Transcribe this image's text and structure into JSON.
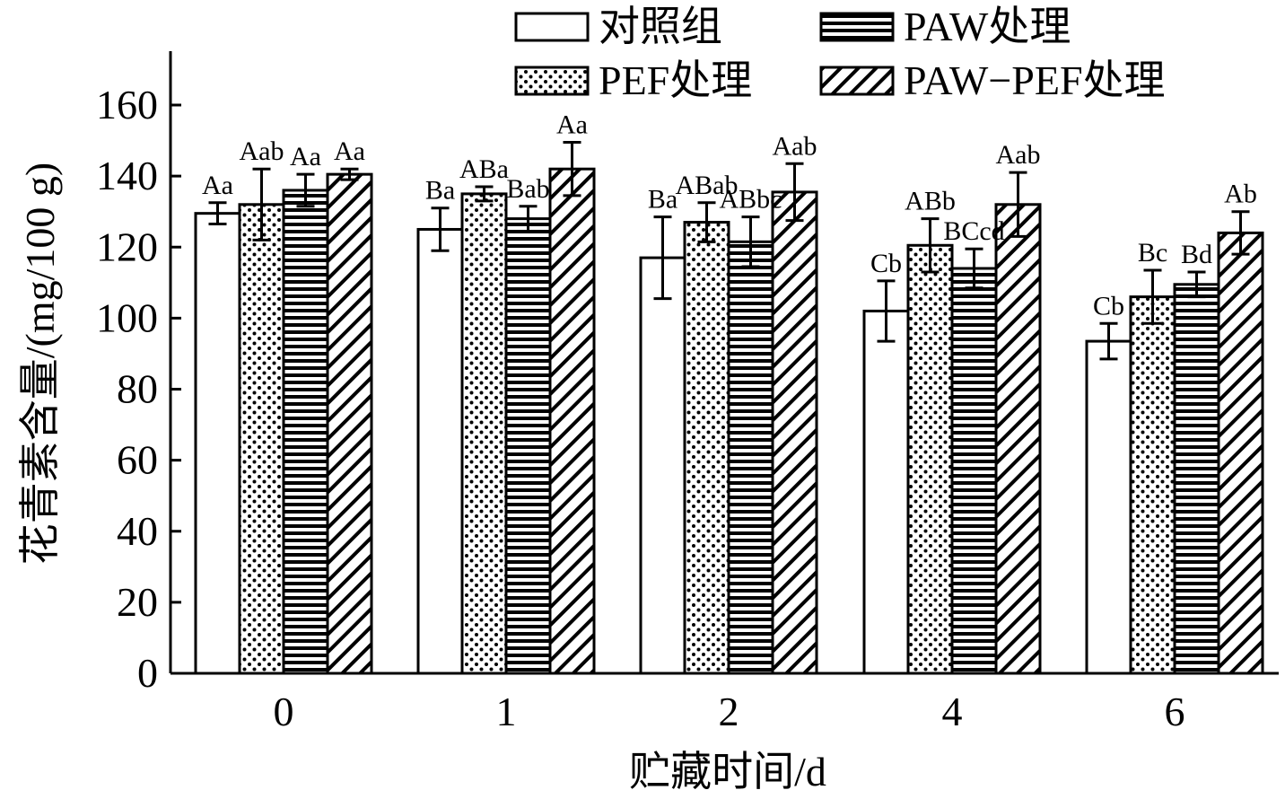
{
  "chart_data": {
    "type": "bar",
    "xlabel": "贮藏时间/d",
    "ylabel": "花青素含量/(mg/100 g)",
    "ylim": [
      0,
      175
    ],
    "yticks": [
      0,
      20,
      40,
      60,
      80,
      100,
      120,
      140,
      160
    ],
    "grid": false,
    "legend_position": "top",
    "categories": [
      "0",
      "1",
      "2",
      "4",
      "6"
    ],
    "series": [
      {
        "name": "对照组",
        "pattern": "empty",
        "values": [
          129.5,
          125,
          117,
          102,
          93.5
        ],
        "errors": [
          3,
          6,
          11.5,
          8.5,
          5
        ],
        "labels": [
          "Aa",
          "Ba",
          "Ba",
          "Cb",
          "Cb"
        ]
      },
      {
        "name": "PEF处理",
        "pattern": "dots",
        "values": [
          132,
          135,
          127,
          120.5,
          106
        ],
        "errors": [
          10,
          2,
          5.5,
          7.5,
          7.5
        ],
        "labels": [
          "Aab",
          "ABa",
          "ABab",
          "ABb",
          "Bc"
        ]
      },
      {
        "name": "PAW处理",
        "pattern": "horizontal-lines",
        "values": [
          136,
          128,
          121.5,
          114,
          109.5
        ],
        "errors": [
          4.5,
          3.5,
          7,
          5.5,
          3.5
        ],
        "labels": [
          "Aa",
          "Bab",
          "ABbc",
          "BCcd",
          "Bd"
        ]
      },
      {
        "name": "PAW−PEF处理",
        "pattern": "diagonal-lines",
        "values": [
          140.5,
          142,
          135.5,
          132,
          124
        ],
        "errors": [
          1.5,
          7.5,
          8,
          9,
          6
        ],
        "labels": [
          "Aa",
          "Aa",
          "Aab",
          "Aab",
          "Ab"
        ]
      }
    ]
  }
}
